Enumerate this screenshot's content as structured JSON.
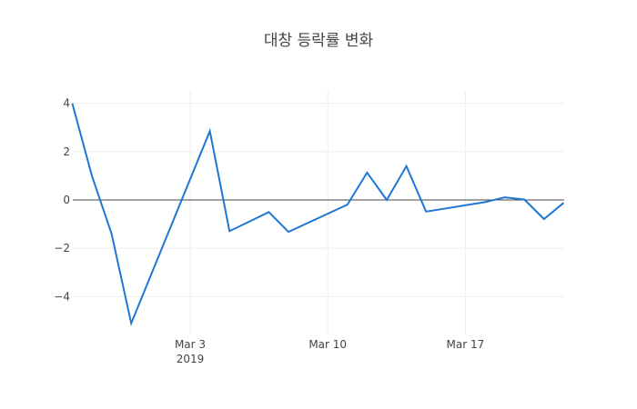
{
  "chart_data": {
    "type": "line",
    "title": "대창 등락률 변화",
    "xlabel": "",
    "ylabel": "",
    "x": [
      "2019-02-25",
      "2019-02-26",
      "2019-02-27",
      "2019-02-28",
      "2019-03-04",
      "2019-03-05",
      "2019-03-06",
      "2019-03-07",
      "2019-03-08",
      "2019-03-11",
      "2019-03-12",
      "2019-03-13",
      "2019-03-14",
      "2019-03-15",
      "2019-03-18",
      "2019-03-19",
      "2019-03-20",
      "2019-03-21",
      "2019-03-22"
    ],
    "series": [
      {
        "name": "등락률",
        "color": "#1f77d4",
        "values": [
          4.0,
          1.0,
          -1.4,
          -5.1,
          2.85,
          -1.29,
          -0.9,
          -0.5,
          -1.32,
          -0.19,
          1.13,
          0.0,
          1.4,
          -0.48,
          -0.09,
          0.11,
          0.02,
          -0.79,
          -0.12
        ]
      }
    ],
    "x_ticks": [
      {
        "date": "2019-03-03",
        "label": "Mar 3",
        "sublabel": "2019"
      },
      {
        "date": "2019-03-10",
        "label": "Mar 10",
        "sublabel": ""
      },
      {
        "date": "2019-03-17",
        "label": "Mar 17",
        "sublabel": ""
      }
    ],
    "y_ticks": [
      4,
      2,
      0,
      -2,
      -4
    ],
    "y_tick_labels": [
      "4",
      "2",
      "0",
      "−2",
      "−4"
    ],
    "ylim": [
      -5.4,
      4.5
    ],
    "grid": true,
    "zeroline": true,
    "legend": "none"
  }
}
